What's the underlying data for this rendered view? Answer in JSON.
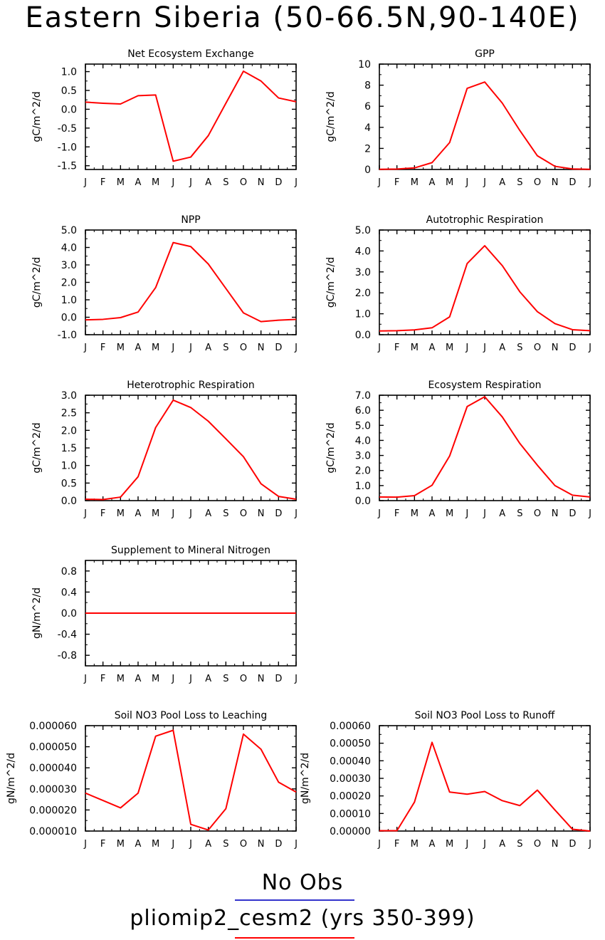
{
  "title": "Eastern Siberia (50-66.5N,90-140E)",
  "colors": {
    "model": "#ff0000",
    "obs": "#3333cc",
    "axis": "#000000"
  },
  "legend": {
    "obs_label": "No Obs",
    "model_label": "pliomip2_cesm2 (yrs 350-399)"
  },
  "chart_data": [
    {
      "type": "line",
      "title": "Net Ecosystem Exchange",
      "ylabel": "gC/m^2/d",
      "x": [
        "J",
        "F",
        "M",
        "A",
        "M",
        "J",
        "J",
        "A",
        "S",
        "O",
        "N",
        "D",
        "J"
      ],
      "ylim": [
        -1.6,
        1.2
      ],
      "yticks": [
        1.0,
        0.5,
        0.0,
        -0.5,
        -1.0,
        -1.5
      ],
      "ytick_labels": [
        "1.0",
        "0.5",
        "0.0",
        "-0.5",
        "-1.0",
        "-1.5"
      ],
      "series": [
        {
          "values": [
            0.19,
            0.16,
            0.14,
            0.36,
            0.38,
            -1.38,
            -1.27,
            -0.7,
            0.16,
            1.01,
            0.75,
            0.3,
            0.2
          ]
        }
      ]
    },
    {
      "type": "line",
      "title": "GPP",
      "ylabel": "gC/m^2/d",
      "x": [
        "J",
        "F",
        "M",
        "A",
        "M",
        "J",
        "J",
        "A",
        "S",
        "O",
        "N",
        "D",
        "J"
      ],
      "ylim": [
        0,
        10
      ],
      "yticks": [
        10,
        8,
        6,
        4,
        2,
        0
      ],
      "ytick_labels": [
        "10",
        "8",
        "6",
        "4",
        "2",
        "0"
      ],
      "series": [
        {
          "values": [
            0.02,
            0.04,
            0.15,
            0.65,
            2.55,
            7.7,
            8.3,
            6.3,
            3.7,
            1.3,
            0.3,
            0.05,
            0.02
          ]
        }
      ]
    },
    {
      "type": "line",
      "title": "NPP",
      "ylabel": "gC/m^2/d",
      "x": [
        "J",
        "F",
        "M",
        "A",
        "M",
        "J",
        "J",
        "A",
        "S",
        "O",
        "N",
        "D",
        "J"
      ],
      "ylim": [
        -1.0,
        5.0
      ],
      "yticks": [
        5.0,
        4.0,
        3.0,
        2.0,
        1.0,
        0.0,
        -1.0
      ],
      "ytick_labels": [
        "5.0",
        "4.0",
        "3.0",
        "2.0",
        "1.0",
        "0.0",
        "-1.0"
      ],
      "series": [
        {
          "values": [
            -0.15,
            -0.12,
            -0.02,
            0.3,
            1.7,
            4.28,
            4.05,
            3.05,
            1.65,
            0.25,
            -0.25,
            -0.17,
            -0.12
          ]
        }
      ]
    },
    {
      "type": "line",
      "title": "Autotrophic Respiration",
      "ylabel": "gC/m^2/d",
      "x": [
        "J",
        "F",
        "M",
        "A",
        "M",
        "J",
        "J",
        "A",
        "S",
        "O",
        "N",
        "D",
        "J"
      ],
      "ylim": [
        0.0,
        5.0
      ],
      "yticks": [
        5.0,
        4.0,
        3.0,
        2.0,
        1.0,
        0.0
      ],
      "ytick_labels": [
        "5.0",
        "4.0",
        "3.0",
        "2.0",
        "1.0",
        "0.0"
      ],
      "series": [
        {
          "values": [
            0.18,
            0.19,
            0.23,
            0.33,
            0.85,
            3.4,
            4.25,
            3.3,
            2.05,
            1.1,
            0.53,
            0.24,
            0.19
          ]
        }
      ]
    },
    {
      "type": "line",
      "title": "Heterotrophic Respiration",
      "ylabel": "gC/m^2/d",
      "x": [
        "J",
        "F",
        "M",
        "A",
        "M",
        "J",
        "J",
        "A",
        "S",
        "O",
        "N",
        "D",
        "J"
      ],
      "ylim": [
        0.0,
        3.0
      ],
      "yticks": [
        3.0,
        2.5,
        2.0,
        1.5,
        1.0,
        0.5,
        0.0
      ],
      "ytick_labels": [
        "3.0",
        "2.5",
        "2.0",
        "1.5",
        "1.0",
        "0.5",
        "0.0"
      ],
      "series": [
        {
          "values": [
            0.04,
            0.03,
            0.1,
            0.68,
            2.08,
            2.86,
            2.65,
            2.26,
            1.76,
            1.25,
            0.48,
            0.12,
            0.04
          ]
        }
      ]
    },
    {
      "type": "line",
      "title": "Ecosystem Respiration",
      "ylabel": "gC/m^2/d",
      "x": [
        "J",
        "F",
        "M",
        "A",
        "M",
        "J",
        "J",
        "A",
        "S",
        "O",
        "N",
        "D",
        "J"
      ],
      "ylim": [
        0.0,
        7.0
      ],
      "yticks": [
        7.0,
        6.0,
        5.0,
        4.0,
        3.0,
        2.0,
        1.0,
        0.0
      ],
      "ytick_labels": [
        "7.0",
        "6.0",
        "5.0",
        "4.0",
        "3.0",
        "2.0",
        "1.0",
        "0.0"
      ],
      "series": [
        {
          "values": [
            0.24,
            0.23,
            0.33,
            1.02,
            2.96,
            6.25,
            6.9,
            5.56,
            3.8,
            2.35,
            1.0,
            0.36,
            0.24
          ]
        }
      ]
    },
    {
      "type": "line",
      "title": "Supplement to Mineral Nitrogen",
      "ylabel": "gN/m^2/d",
      "x": [
        "J",
        "F",
        "M",
        "A",
        "M",
        "J",
        "J",
        "A",
        "S",
        "O",
        "N",
        "D",
        "J"
      ],
      "ylim": [
        -1.0,
        1.0
      ],
      "yticks": [
        0.8,
        0.4,
        0.0,
        -0.4,
        -0.8
      ],
      "ytick_labels": [
        "0.8",
        "0.4",
        "0.0",
        "-0.4",
        "-0.8"
      ],
      "series": [
        {
          "values": [
            0,
            0,
            0,
            0,
            0,
            0,
            0,
            0,
            0,
            0,
            0,
            0,
            0
          ]
        }
      ]
    },
    {
      "type": "line",
      "title": "Soil NO3 Pool Loss to Leaching",
      "ylabel": "gN/m^2/d",
      "x": [
        "J",
        "F",
        "M",
        "A",
        "M",
        "J",
        "J",
        "A",
        "S",
        "O",
        "N",
        "D",
        "J"
      ],
      "ylim": [
        1e-05,
        6e-05
      ],
      "yticks": [
        6e-05,
        5e-05,
        4e-05,
        3e-05,
        2e-05,
        1e-05
      ],
      "ytick_labels": [
        "0.000060",
        "0.000050",
        "0.000040",
        "0.000030",
        "0.000020",
        "0.000010"
      ],
      "series": [
        {
          "values": [
            2.8e-05,
            2.45e-05,
            2.1e-05,
            2.8e-05,
            5.5e-05,
            5.78e-05,
            1.32e-05,
            1.05e-05,
            2.06e-05,
            5.6e-05,
            4.88e-05,
            3.32e-05,
            2.85e-05
          ]
        }
      ]
    },
    {
      "type": "line",
      "title": "Soil NO3 Pool Loss to Runoff",
      "ylabel": "gN/m^2/d",
      "x": [
        "J",
        "F",
        "M",
        "A",
        "M",
        "J",
        "J",
        "A",
        "S",
        "O",
        "N",
        "D",
        "J"
      ],
      "ylim": [
        0.0,
        0.0006
      ],
      "yticks": [
        0.0006,
        0.0005,
        0.0004,
        0.0003,
        0.0002,
        0.0001,
        0.0
      ],
      "ytick_labels": [
        "0.00060",
        "0.00050",
        "0.00040",
        "0.00030",
        "0.00020",
        "0.00010",
        "0.00000"
      ],
      "series": [
        {
          "values": [
            2e-06,
            2e-06,
            0.000165,
            0.000505,
            0.000222,
            0.00021,
            0.000225,
            0.000173,
            0.000145,
            0.000233,
            0.00012,
            1e-05,
            0.0
          ]
        }
      ]
    }
  ]
}
